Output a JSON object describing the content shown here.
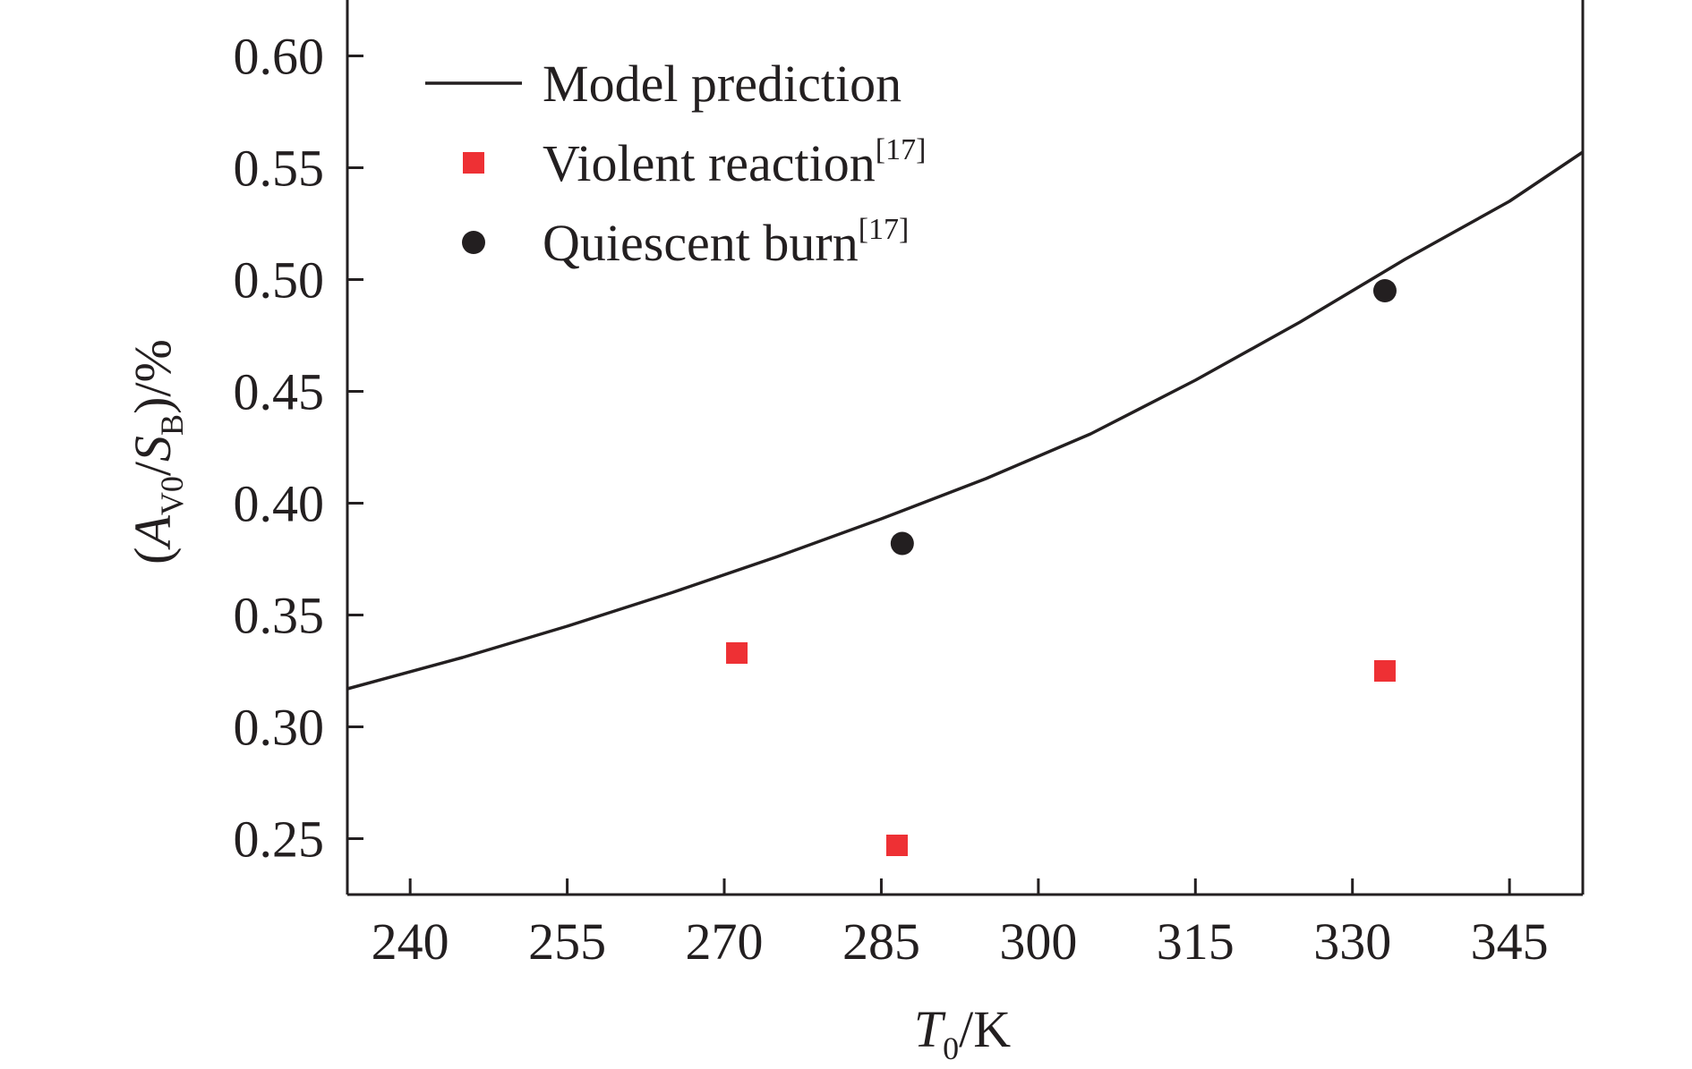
{
  "chart_data": {
    "type": "scatter",
    "xlabel": {
      "main": "T",
      "sub": "0",
      "suffix": "/K"
    },
    "ylabel": {
      "open": "(",
      "a": "A",
      "a_sub": "V0",
      "slash": "/",
      "s": "S",
      "s_sub": "B",
      "close": ")/%"
    },
    "xlim": [
      234,
      352
    ],
    "ylim": [
      0.225,
      0.625
    ],
    "xticks": [
      240,
      255,
      270,
      285,
      300,
      315,
      330,
      345
    ],
    "yticks": [
      0.25,
      0.3,
      0.35,
      0.4,
      0.45,
      0.5,
      0.55,
      0.6
    ],
    "xtick_labels": [
      "240",
      "255",
      "270",
      "285",
      "300",
      "315",
      "330",
      "345"
    ],
    "ytick_labels": [
      "0.25",
      "0.30",
      "0.35",
      "0.40",
      "0.45",
      "0.50",
      "0.55",
      "0.60"
    ],
    "grid": false,
    "legend_position": "top-left",
    "series": [
      {
        "name": "Model prediction",
        "kind": "line",
        "color": "#231f20",
        "x": [
          234,
          245,
          255,
          265,
          275,
          285,
          295,
          305,
          315,
          325,
          335,
          345,
          352
        ],
        "y": [
          0.317,
          0.331,
          0.345,
          0.36,
          0.376,
          0.393,
          0.411,
          0.431,
          0.455,
          0.481,
          0.509,
          0.535,
          0.557
        ]
      },
      {
        "name": "Violent reaction",
        "ref": "[17]",
        "kind": "scatter",
        "marker": "square",
        "color": "#ee3034",
        "x": [
          271.2,
          286.5,
          333.1
        ],
        "y": [
          0.333,
          0.247,
          0.325
        ]
      },
      {
        "name": "Quiescent burn",
        "ref": "[17]",
        "kind": "scatter",
        "marker": "circle",
        "color": "#231f20",
        "x": [
          287.0,
          333.1
        ],
        "y": [
          0.382,
          0.495
        ]
      }
    ]
  }
}
